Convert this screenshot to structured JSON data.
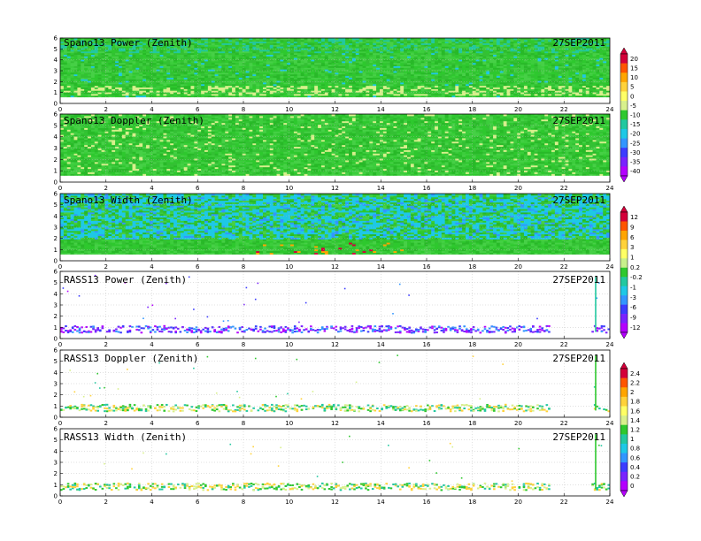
{
  "chart_data": [
    {
      "type": "heatmap",
      "title": "Spano13 Power (Zenith)",
      "date": "27SEP2011",
      "xlim": [
        0,
        24
      ],
      "ylim": [
        0,
        6
      ],
      "x_ticks": [
        "0",
        "2",
        "4",
        "6",
        "8",
        "10",
        "12",
        "14",
        "16",
        "18",
        "20",
        "22",
        "24"
      ],
      "y_ticks": [
        "0",
        "1",
        "2",
        "3",
        "4",
        "5",
        "6"
      ],
      "grid": true,
      "colorbar": {
        "labels": [
          "20",
          "15",
          "10",
          "5",
          "0",
          "-5",
          "-10",
          "-15",
          "-20",
          "-25",
          "-30",
          "-35",
          "-40"
        ],
        "colors": [
          "#d4003a",
          "#ff5500",
          "#ffa500",
          "#ffd23a",
          "#ffff66",
          "#d8f08c",
          "#2ec82e",
          "#22c8a0",
          "#1ec8e6",
          "#3296ff",
          "#3c3cff",
          "#7a22ff",
          "#b400ff"
        ]
      }
    },
    {
      "type": "heatmap",
      "title": "Spano13 Doppler (Zenith)",
      "date": "27SEP2011",
      "xlim": [
        0,
        24
      ],
      "ylim": [
        0,
        6
      ],
      "x_ticks": [
        "0",
        "2",
        "4",
        "6",
        "8",
        "10",
        "12",
        "14",
        "16",
        "18",
        "20",
        "22",
        "24"
      ],
      "y_ticks": [
        "0",
        "1",
        "2",
        "3",
        "4",
        "5",
        "6"
      ],
      "grid": true,
      "colorbar": null
    },
    {
      "type": "heatmap",
      "title": "Spano13 Width (Zenith)",
      "date": "27SEP2011",
      "xlim": [
        0,
        24
      ],
      "ylim": [
        0,
        6
      ],
      "x_ticks": [
        "0",
        "2",
        "4",
        "6",
        "8",
        "10",
        "12",
        "14",
        "16",
        "18",
        "20",
        "22",
        "24"
      ],
      "y_ticks": [
        "0",
        "1",
        "2",
        "3",
        "4",
        "5",
        "6"
      ],
      "grid": true,
      "colorbar": {
        "labels": [
          "12",
          "9",
          "6",
          "3",
          "1",
          "0.2",
          "-0.2",
          "-1",
          "-3",
          "-6",
          "-9",
          "-12"
        ],
        "colors": [
          "#d4003a",
          "#ff5500",
          "#ffa500",
          "#ffd23a",
          "#ffff66",
          "#c8f08c",
          "#2ec82e",
          "#22c8a0",
          "#1ec8e6",
          "#3296ff",
          "#3c3cff",
          "#7a22ff",
          "#b400ff"
        ]
      }
    },
    {
      "type": "heatmap",
      "title": "RASS13 Power (Zenith)",
      "date": "27SEP2011",
      "xlim": [
        0,
        24
      ],
      "ylim": [
        0,
        6
      ],
      "x_ticks": [
        "0",
        "2",
        "4",
        "6",
        "8",
        "10",
        "12",
        "14",
        "16",
        "18",
        "20",
        "22",
        "24"
      ],
      "y_ticks": [
        "0",
        "1",
        "2",
        "3",
        "4",
        "5",
        "6"
      ],
      "grid": true,
      "colorbar": null
    },
    {
      "type": "heatmap",
      "title": "RASS13 Doppler (Zenith)",
      "date": "27SEP2011",
      "xlim": [
        0,
        24
      ],
      "ylim": [
        0,
        6
      ],
      "x_ticks": [
        "0",
        "2",
        "4",
        "6",
        "8",
        "10",
        "12",
        "14",
        "16",
        "18",
        "20",
        "22",
        "24"
      ],
      "y_ticks": [
        "0",
        "1",
        "2",
        "3",
        "4",
        "5",
        "6"
      ],
      "grid": true,
      "colorbar": {
        "labels": [
          "2.4",
          "2.2",
          "2",
          "1.8",
          "1.6",
          "1.4",
          "1.2",
          "1",
          "0.8",
          "0.6",
          "0.4",
          "0.2",
          "0"
        ],
        "colors": [
          "#d4003a",
          "#ff5500",
          "#ffa500",
          "#ffd23a",
          "#ffff66",
          "#d8f08c",
          "#2ec82e",
          "#22c8a0",
          "#1ec8e6",
          "#3296ff",
          "#3c3cff",
          "#7a22ff",
          "#b400ff"
        ]
      }
    },
    {
      "type": "heatmap",
      "title": "RASS13 Width (Zenith)",
      "date": "27SEP2011",
      "xlim": [
        0,
        24
      ],
      "ylim": [
        0,
        6
      ],
      "x_ticks": [
        "0",
        "2",
        "4",
        "6",
        "8",
        "10",
        "12",
        "14",
        "16",
        "18",
        "20",
        "22",
        "24"
      ],
      "y_ticks": [
        "0",
        "1",
        "2",
        "3",
        "4",
        "5",
        "6"
      ],
      "grid": true,
      "colorbar": null
    }
  ]
}
